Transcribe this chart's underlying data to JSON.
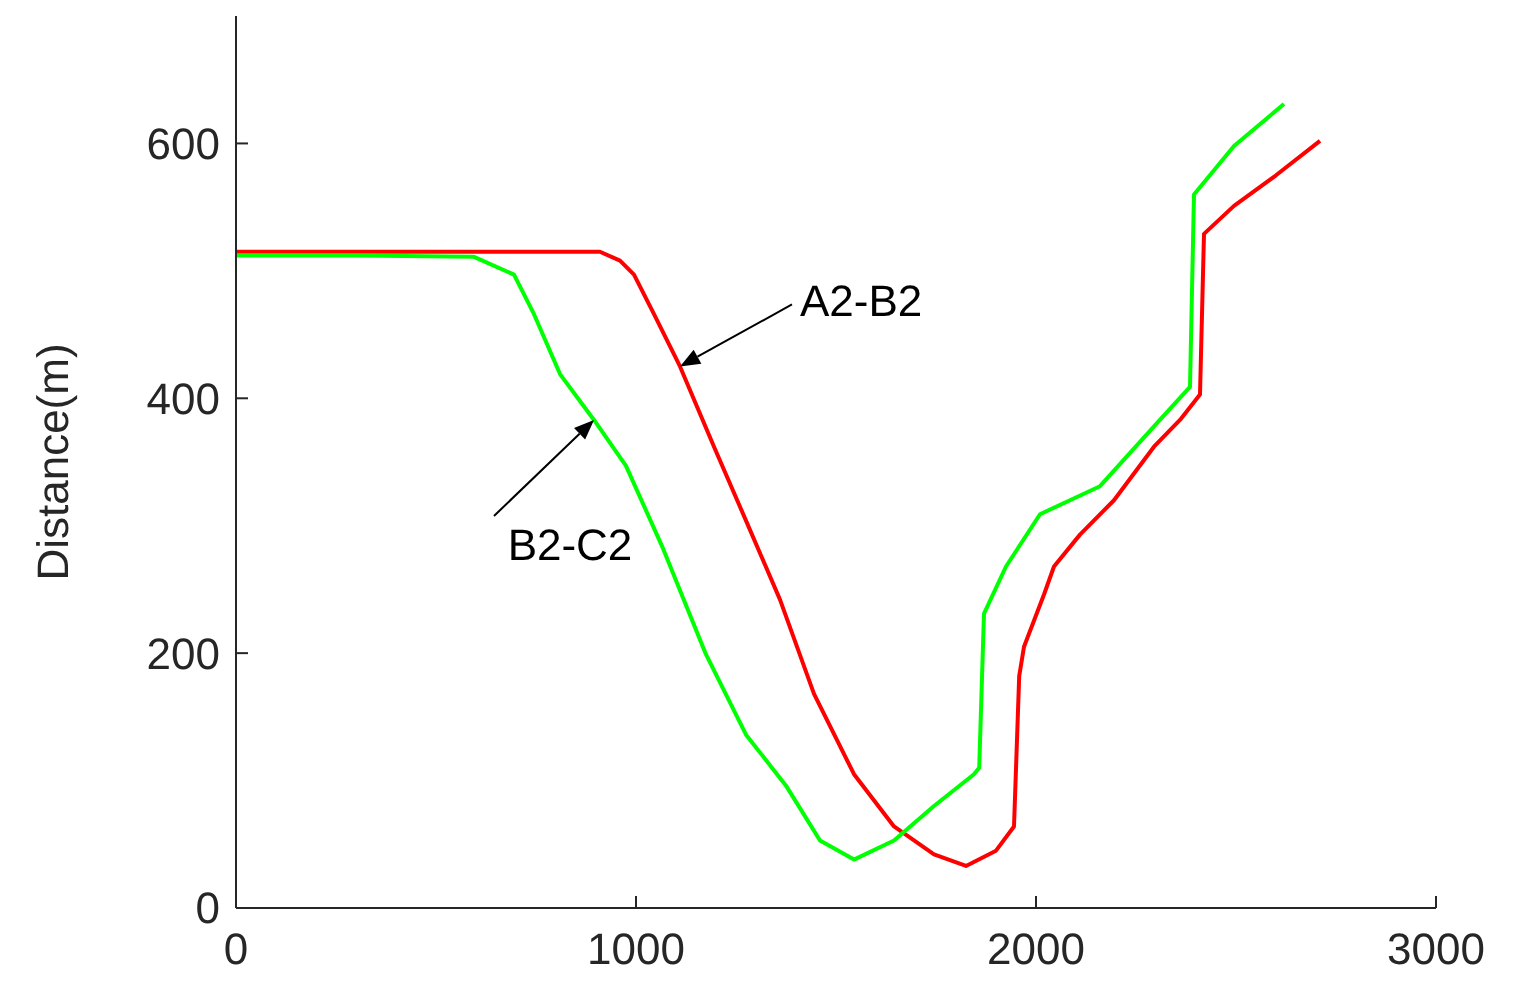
{
  "chart_data": {
    "type": "line",
    "ylabel": "Distance(m)",
    "xlim": [
      0,
      3000
    ],
    "ylim": [
      0,
      700
    ],
    "xticks": [
      0,
      1000,
      2000,
      3000
    ],
    "yticks": [
      0,
      200,
      400,
      600
    ],
    "grid": false,
    "legend": false,
    "marker": "none",
    "line_style": "solid",
    "series": [
      {
        "name": "A2-B2",
        "color": "#ff0000",
        "x": [
          0,
          500,
          910,
          960,
          995,
          1045,
          1110,
          1195,
          1275,
          1360,
          1445,
          1545,
          1645,
          1745,
          1825,
          1900,
          1945,
          1958,
          1970,
          2020,
          2045,
          2110,
          2195,
          2295,
          2360,
          2410,
          2420,
          2495,
          2600,
          2710
        ],
        "values": [
          515,
          515,
          515,
          508,
          497,
          466,
          425,
          362,
          304,
          242,
          168,
          105,
          64,
          42,
          33,
          45,
          64,
          182,
          205,
          246,
          268,
          293,
          320,
          362,
          383,
          403,
          529,
          551,
          575,
          602
        ]
      },
      {
        "name": "B2-C2",
        "color": "#00ff00",
        "x": [
          0,
          300,
          595,
          695,
          745,
          810,
          895,
          975,
          1065,
          1175,
          1275,
          1375,
          1460,
          1545,
          1645,
          1745,
          1845,
          1858,
          1870,
          1925,
          2010,
          2160,
          2295,
          2385,
          2395,
          2495,
          2620
        ],
        "values": [
          512,
          512,
          511,
          497,
          466,
          419,
          383,
          347,
          284,
          199,
          136,
          96,
          53,
          38,
          53,
          80,
          105,
          110,
          231,
          268,
          309,
          331,
          378,
          409,
          560,
          598,
          631
        ]
      }
    ]
  }
}
